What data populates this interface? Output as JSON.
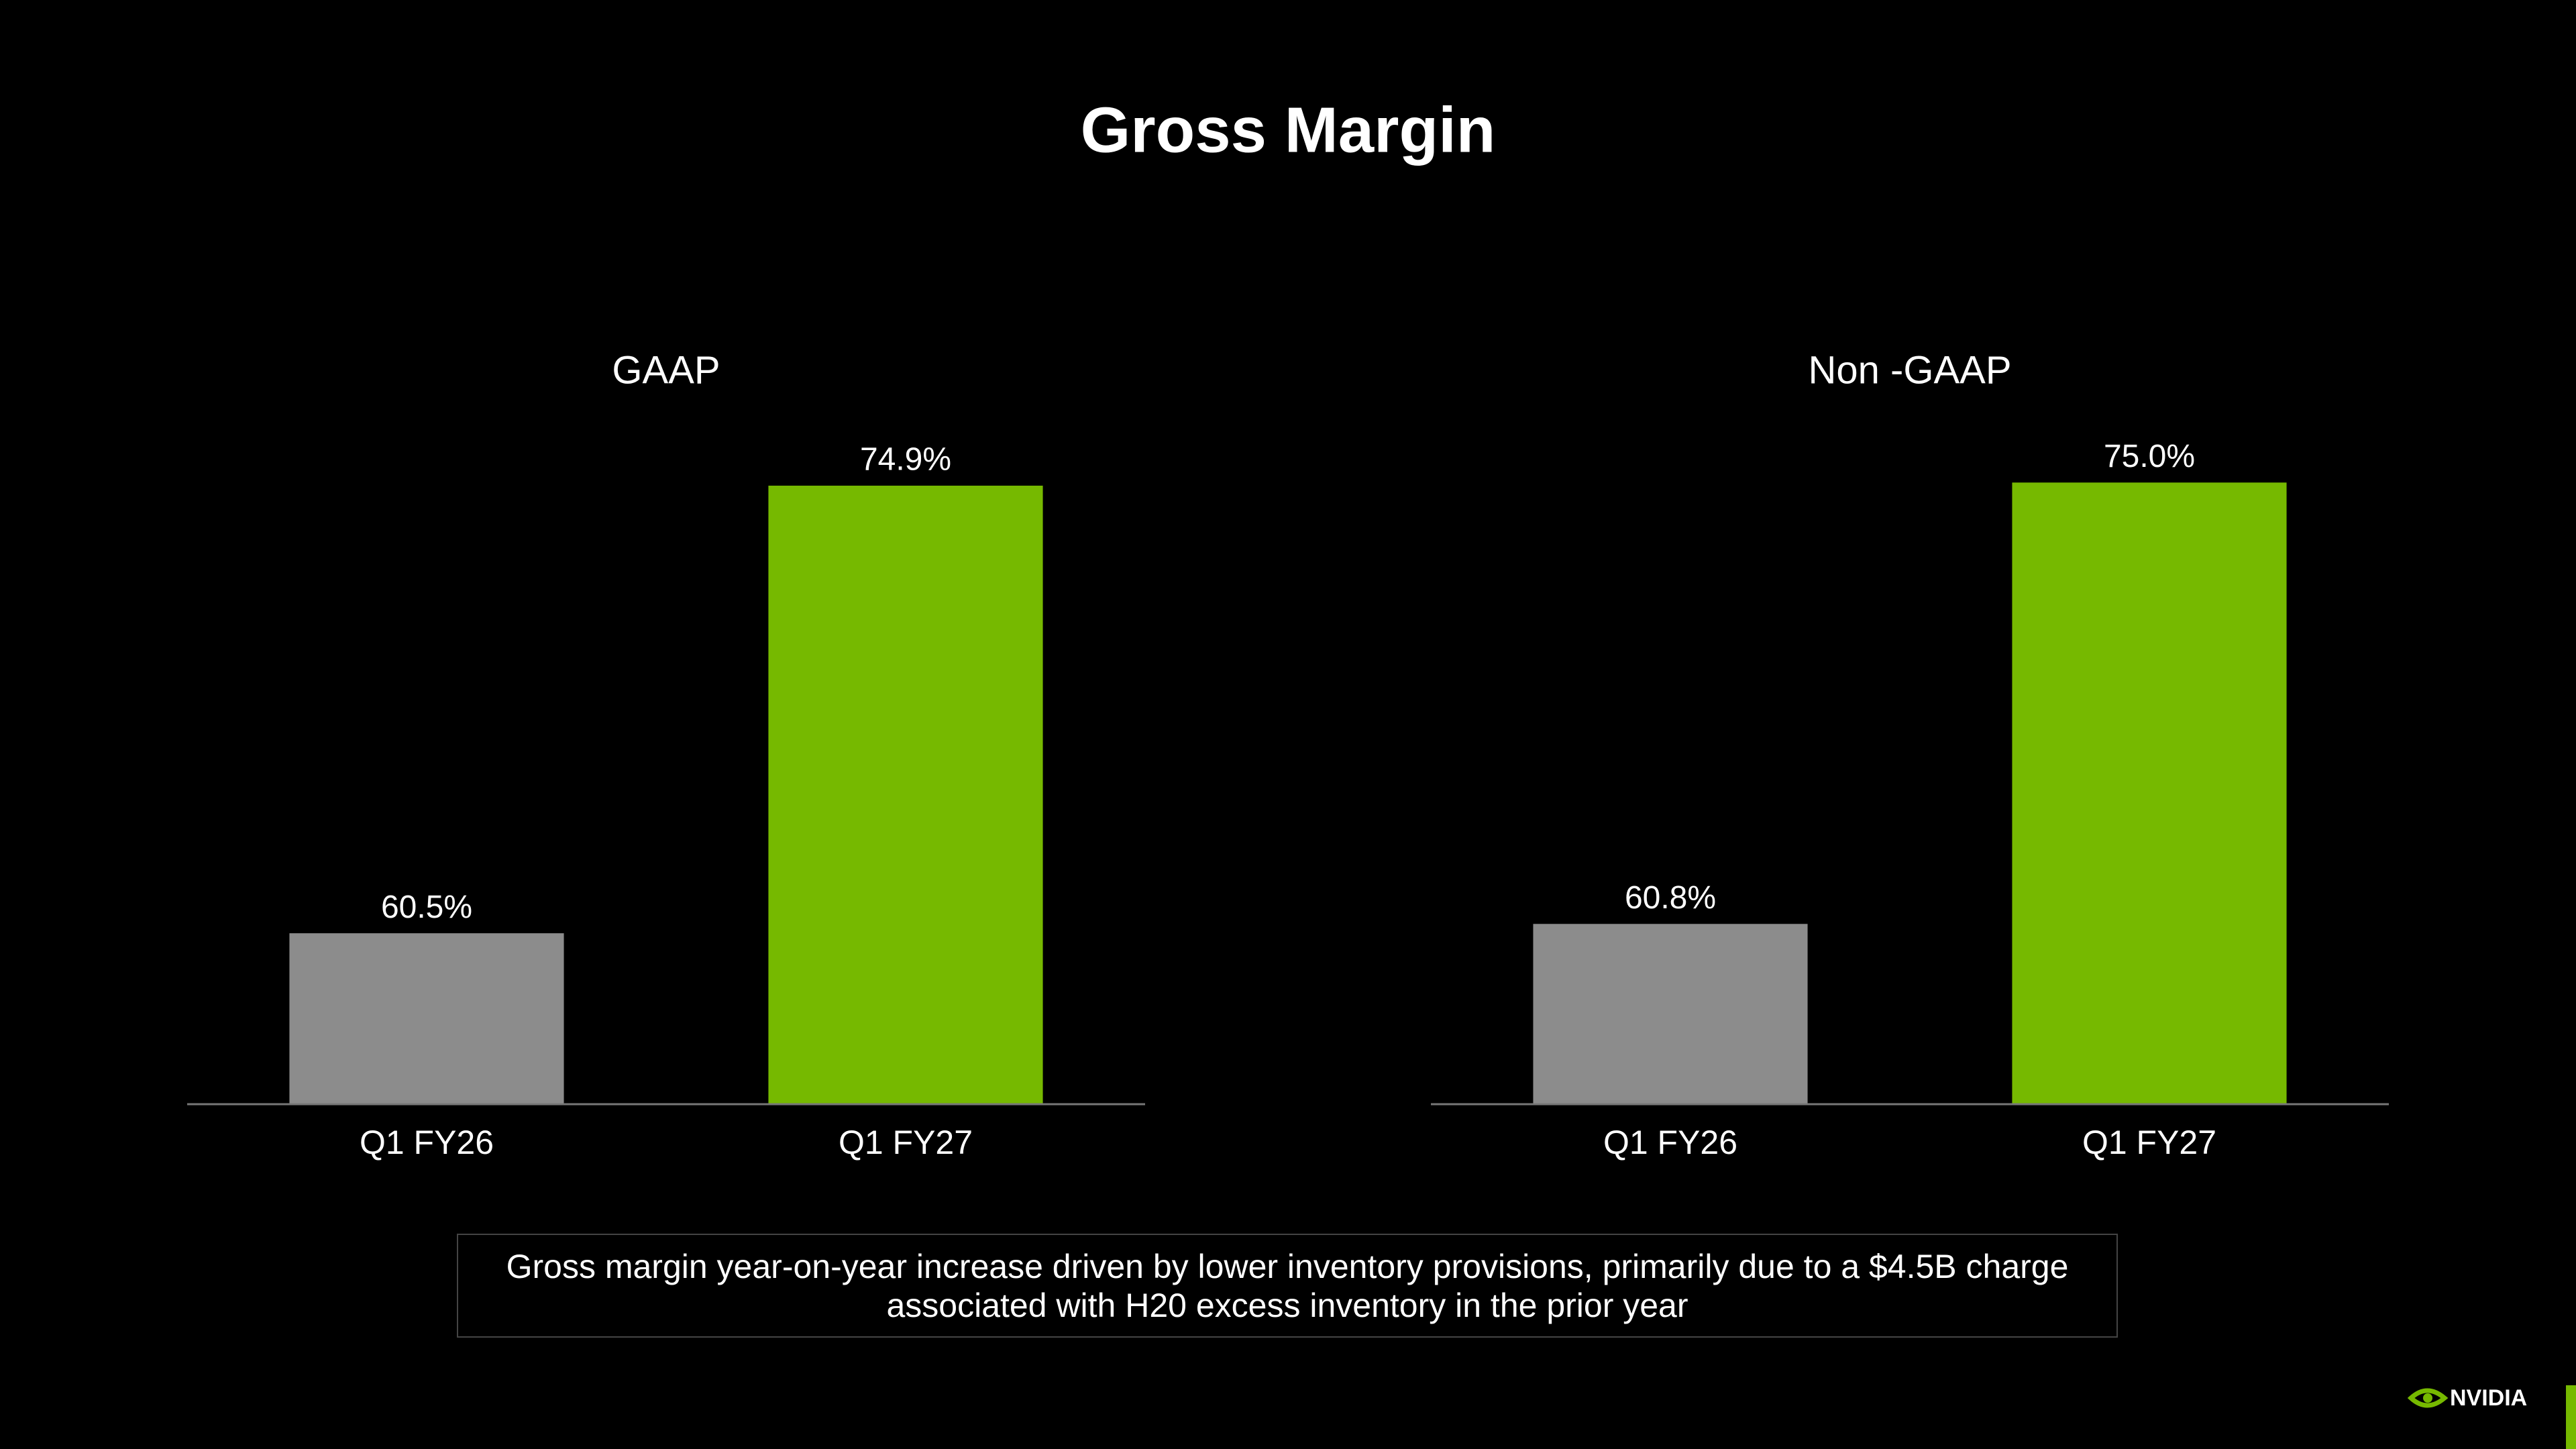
{
  "title": "Gross Margin",
  "chart_data": [
    {
      "type": "bar",
      "title": "GAAP",
      "categories": [
        "Q1 FY26",
        "Q1 FY27"
      ],
      "values": [
        60.5,
        74.9
      ],
      "value_labels": [
        "60.5%",
        "74.9%"
      ],
      "colors": [
        "#8c8c8c",
        "#76b900"
      ],
      "ylim": [
        55,
        76
      ]
    },
    {
      "type": "bar",
      "title": "Non -GAAP",
      "categories": [
        "Q1 FY26",
        "Q1 FY27"
      ],
      "values": [
        60.8,
        75.0
      ],
      "value_labels": [
        "60.8%",
        "75.0%"
      ],
      "colors": [
        "#8c8c8c",
        "#76b900"
      ],
      "ylim": [
        55,
        76
      ]
    }
  ],
  "footnote": "Gross margin year-on-year increase driven by lower inventory provisions, primarily due to a $4.5B charge associated with H20 excess inventory in the prior year",
  "logo": "NVIDIA"
}
